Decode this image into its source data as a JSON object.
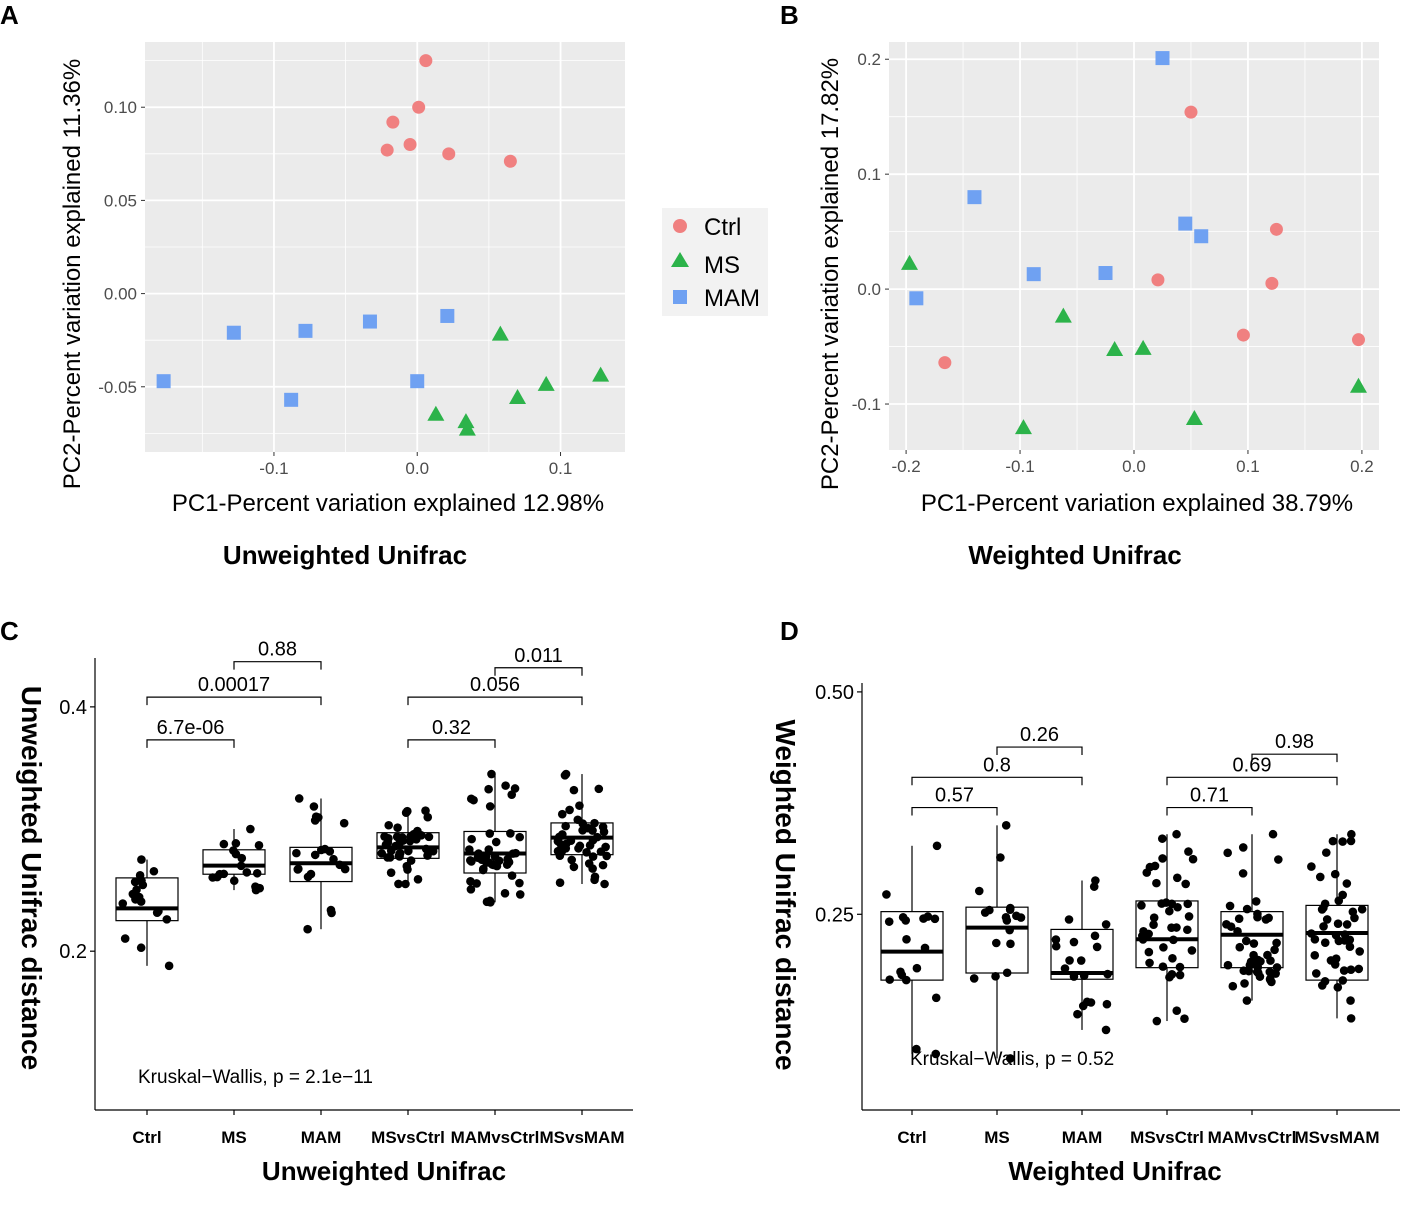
{
  "colors": {
    "Ctrl": "#f08080",
    "MS": "#2cb34a",
    "MAM": "#6fa1f2",
    "panel_bg": "#ebebeb",
    "grid": "#ffffff"
  },
  "legend": {
    "entries": [
      {
        "group": "Ctrl",
        "label": "Ctrl",
        "shape": "circle-icon"
      },
      {
        "group": "MS",
        "label": "MS",
        "shape": "triangle-icon"
      },
      {
        "group": "MAM",
        "label": "MAM",
        "shape": "square-icon"
      }
    ]
  },
  "panels": {
    "A": {
      "label": "A",
      "caption": "Unweighted Unifrac"
    },
    "B": {
      "label": "B",
      "caption": "Weighted Unifrac"
    },
    "C": {
      "label": "C",
      "caption": "Unweighted Unifrac"
    },
    "D": {
      "label": "D",
      "caption": "Weighted Unifrac"
    }
  },
  "chart_data": [
    {
      "id": "A",
      "type": "scatter",
      "title": "Unweighted Unifrac",
      "xlabel": "PC1-Percent variation explained 12.98%",
      "ylabel": "PC2-Percent variation explained 11.36%",
      "xlim": [
        -0.19,
        0.145
      ],
      "ylim": [
        -0.085,
        0.135
      ],
      "xticks": [
        {
          "v": -0.1,
          "label": "-0.1"
        },
        {
          "v": 0.0,
          "label": "0.0"
        },
        {
          "v": 0.1,
          "label": "0.1"
        }
      ],
      "yticks": [
        {
          "v": -0.05,
          "label": "-0.05"
        },
        {
          "v": 0.0,
          "label": "0.00"
        },
        {
          "v": 0.05,
          "label": "0.05"
        },
        {
          "v": 0.1,
          "label": "0.10"
        }
      ],
      "series": [
        {
          "name": "Ctrl",
          "points": [
            [
              0.006,
              0.125
            ],
            [
              0.001,
              0.1
            ],
            [
              -0.017,
              0.092
            ],
            [
              -0.005,
              0.08
            ],
            [
              -0.021,
              0.077
            ],
            [
              0.022,
              0.075
            ],
            [
              0.065,
              0.071
            ]
          ]
        },
        {
          "name": "MS",
          "points": [
            [
              0.058,
              -0.022
            ],
            [
              0.128,
              -0.044
            ],
            [
              0.09,
              -0.049
            ],
            [
              0.07,
              -0.056
            ],
            [
              0.013,
              -0.065
            ],
            [
              0.034,
              -0.069
            ],
            [
              0.035,
              -0.073
            ]
          ]
        },
        {
          "name": "MAM",
          "points": [
            [
              0.021,
              -0.012
            ],
            [
              -0.033,
              -0.015
            ],
            [
              -0.078,
              -0.02
            ],
            [
              -0.128,
              -0.021
            ],
            [
              -0.177,
              -0.047
            ],
            [
              0.0,
              -0.047
            ],
            [
              -0.088,
              -0.057
            ]
          ]
        }
      ]
    },
    {
      "id": "B",
      "type": "scatter",
      "title": "Weighted Unifrac",
      "xlabel": "PC1-Percent variation explained 38.79%",
      "ylabel": "PC2-Percent variation explained 17.82%",
      "xlim": [
        -0.215,
        0.215
      ],
      "ylim": [
        -0.14,
        0.215
      ],
      "xticks": [
        {
          "v": -0.2,
          "label": "-0.2"
        },
        {
          "v": -0.1,
          "label": "-0.1"
        },
        {
          "v": 0.0,
          "label": "0.0"
        },
        {
          "v": 0.1,
          "label": "0.1"
        },
        {
          "v": 0.2,
          "label": "0.2"
        }
      ],
      "yticks": [
        {
          "v": -0.1,
          "label": "-0.1"
        },
        {
          "v": 0.0,
          "label": "0.0"
        },
        {
          "v": 0.1,
          "label": "0.1"
        },
        {
          "v": 0.2,
          "label": "0.2"
        }
      ],
      "series": [
        {
          "name": "Ctrl",
          "points": [
            [
              0.05,
              0.154
            ],
            [
              0.125,
              0.052
            ],
            [
              0.021,
              0.008
            ],
            [
              0.121,
              0.005
            ],
            [
              0.096,
              -0.04
            ],
            [
              0.197,
              -0.044
            ],
            [
              -0.166,
              -0.064
            ]
          ]
        },
        {
          "name": "MS",
          "points": [
            [
              -0.197,
              0.022
            ],
            [
              -0.062,
              -0.024
            ],
            [
              -0.017,
              -0.053
            ],
            [
              0.008,
              -0.052
            ],
            [
              0.197,
              -0.085
            ],
            [
              0.053,
              -0.113
            ],
            [
              -0.097,
              -0.121
            ]
          ]
        },
        {
          "name": "MAM",
          "points": [
            [
              0.025,
              0.201
            ],
            [
              -0.14,
              0.08
            ],
            [
              0.045,
              0.057
            ],
            [
              0.059,
              0.046
            ],
            [
              -0.088,
              0.013
            ],
            [
              -0.025,
              0.014
            ],
            [
              -0.191,
              -0.008
            ]
          ]
        }
      ]
    },
    {
      "id": "C",
      "type": "box",
      "title": "Unweighted Unifrac",
      "xlabel": "Unweighted Unifrac",
      "ylabel": "Unweighted Unifrac distance",
      "ylim": [
        0.07,
        0.44
      ],
      "yticks": [
        {
          "v": 0.2,
          "label": "0.2"
        },
        {
          "v": 0.4,
          "label": "0.4"
        }
      ],
      "test": "Kruskal−Wallis, p = 2.1e−11",
      "categories": [
        "Ctrl",
        "MS",
        "MAM",
        "MSvsCtrl",
        "MAMvsCtrl",
        "MSvsMAM"
      ],
      "boxes": [
        {
          "q1": 0.225,
          "median": 0.235,
          "q3": 0.26,
          "lo": 0.188,
          "hi": 0.275,
          "n": 18
        },
        {
          "q1": 0.263,
          "median": 0.27,
          "q3": 0.283,
          "lo": 0.25,
          "hi": 0.3,
          "n": 18
        },
        {
          "q1": 0.257,
          "median": 0.272,
          "q3": 0.285,
          "lo": 0.218,
          "hi": 0.325,
          "n": 21
        },
        {
          "q1": 0.276,
          "median": 0.285,
          "q3": 0.297,
          "lo": 0.255,
          "hi": 0.315,
          "n": 42
        },
        {
          "q1": 0.264,
          "median": 0.28,
          "q3": 0.298,
          "lo": 0.24,
          "hi": 0.345,
          "n": 45
        },
        {
          "q1": 0.279,
          "median": 0.293,
          "q3": 0.305,
          "lo": 0.255,
          "hi": 0.345,
          "n": 45
        }
      ],
      "comparisons": [
        {
          "from": "Ctrl",
          "to": "MS",
          "p": "6.7e-06",
          "y": 0.373
        },
        {
          "from": "Ctrl",
          "to": "MAM",
          "p": "0.00017",
          "y": 0.408
        },
        {
          "from": "MS",
          "to": "MAM",
          "p": "0.88",
          "y": 0.437
        },
        {
          "from": "MSvsCtrl",
          "to": "MAMvsCtrl",
          "p": "0.32",
          "y": 0.373
        },
        {
          "from": "MSvsCtrl",
          "to": "MSvsMAM",
          "p": "0.056",
          "y": 0.408
        },
        {
          "from": "MAMvsCtrl",
          "to": "MSvsMAM",
          "p": "0.011",
          "y": 0.432
        }
      ]
    },
    {
      "id": "D",
      "type": "box",
      "title": "Weighted Unifrac",
      "xlabel": "Weighted Unifrac",
      "ylabel": "Weighted Unifrac distance",
      "ylim": [
        0.03,
        0.51
      ],
      "yticks": [
        {
          "v": 0.25,
          "label": "0.25"
        },
        {
          "v": 0.5,
          "label": "0.50"
        }
      ],
      "test": "Kruskal−Wallis, p = 0.52",
      "categories": [
        "Ctrl",
        "MS",
        "MAM",
        "MSvsCtrl",
        "MAMvsCtrl",
        "MSvsMAM"
      ],
      "boxes": [
        {
          "q1": 0.176,
          "median": 0.208,
          "q3": 0.253,
          "lo": 0.093,
          "hi": 0.327,
          "n": 18
        },
        {
          "q1": 0.184,
          "median": 0.235,
          "q3": 0.258,
          "lo": 0.088,
          "hi": 0.35,
          "n": 18
        },
        {
          "q1": 0.177,
          "median": 0.184,
          "q3": 0.233,
          "lo": 0.12,
          "hi": 0.288,
          "n": 21
        },
        {
          "q1": 0.19,
          "median": 0.222,
          "q3": 0.265,
          "lo": 0.13,
          "hi": 0.34,
          "n": 42
        },
        {
          "q1": 0.19,
          "median": 0.227,
          "q3": 0.253,
          "lo": 0.153,
          "hi": 0.34,
          "n": 45
        },
        {
          "q1": 0.176,
          "median": 0.229,
          "q3": 0.26,
          "lo": 0.133,
          "hi": 0.34,
          "n": 45
        }
      ],
      "comparisons": [
        {
          "from": "Ctrl",
          "to": "MS",
          "p": "0.57",
          "y": 0.37
        },
        {
          "from": "Ctrl",
          "to": "MAM",
          "p": "0.8",
          "y": 0.404
        },
        {
          "from": "MS",
          "to": "MAM",
          "p": "0.26",
          "y": 0.438
        },
        {
          "from": "MSvsCtrl",
          "to": "MAMvsCtrl",
          "p": "0.71",
          "y": 0.37
        },
        {
          "from": "MSvsCtrl",
          "to": "MSvsMAM",
          "p": "0.69",
          "y": 0.404
        },
        {
          "from": "MAMvsCtrl",
          "to": "MSvsMAM",
          "p": "0.98",
          "y": 0.43
        }
      ]
    }
  ]
}
